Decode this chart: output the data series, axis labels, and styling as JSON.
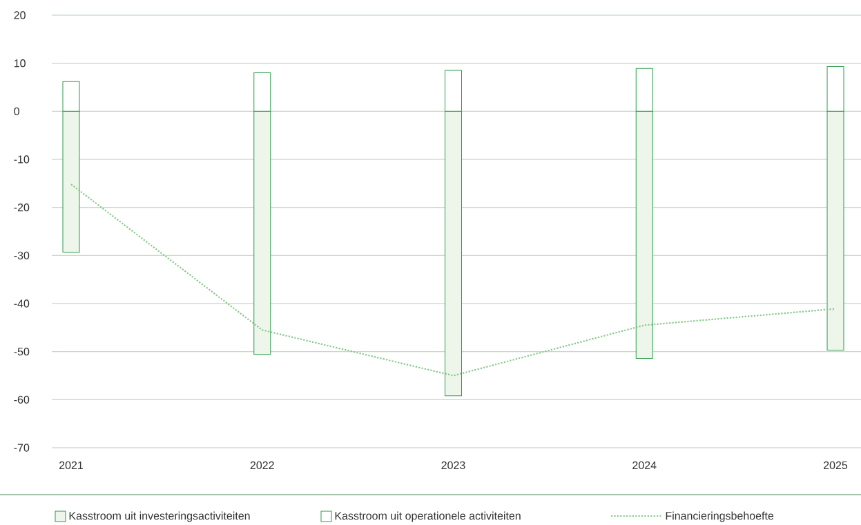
{
  "chart_data": {
    "type": "bar",
    "stacked": true,
    "categories": [
      "2021",
      "2022",
      "2023",
      "2024",
      "2025"
    ],
    "series": [
      {
        "name": "Kasstroom uit investeringsactiviteiten",
        "color": "#eef5eb",
        "values": [
          -29.3,
          -50.6,
          -59.2,
          -51.4,
          -49.7
        ]
      },
      {
        "name": "Kasstroom uit operationele activiteiten",
        "color": "#ffffff",
        "values": [
          6.2,
          8.0,
          8.5,
          8.9,
          9.3
        ]
      },
      {
        "name": "Financieringsbehoefte",
        "type": "line",
        "line_style": "dotted",
        "color": "#86c98a",
        "values": [
          -15.2,
          -45.5,
          -55.0,
          -44.5,
          -41.1
        ]
      }
    ],
    "ylim": [
      -70,
      20
    ],
    "yticks": [
      -70,
      -60,
      -50,
      -40,
      -30,
      -20,
      -10,
      0,
      10,
      20
    ],
    "grid": "y",
    "legend": "bottom"
  }
}
